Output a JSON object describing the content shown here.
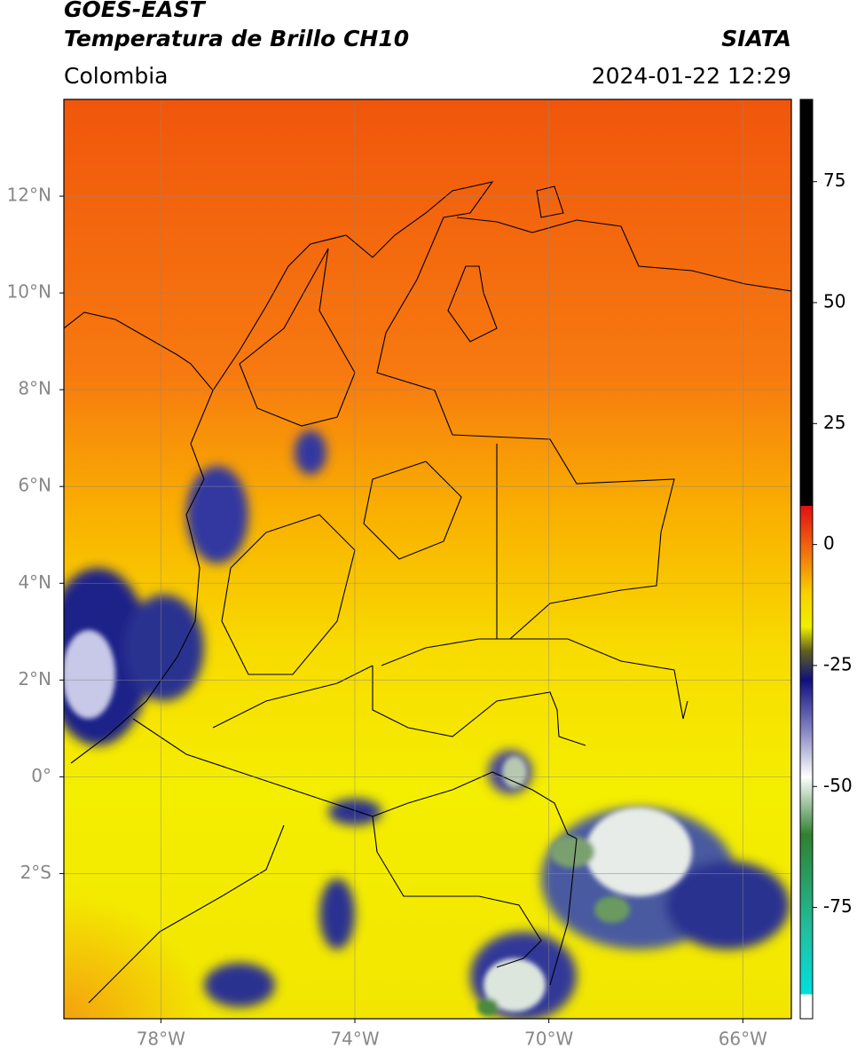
{
  "header": {
    "title": "GOES-EAST",
    "product": "Temperatura de Brillo CH10",
    "source": "SIATA",
    "region": "Colombia",
    "datetime": "2024-01-22 12:29"
  },
  "map": {
    "lonlim": [
      -80,
      -65
    ],
    "latlim": [
      -5,
      14
    ],
    "lonticks": [
      {
        "value": -78,
        "label": "78°W"
      },
      {
        "value": -74,
        "label": "74°W"
      },
      {
        "value": -70,
        "label": "70°W"
      },
      {
        "value": -66,
        "label": "66°W"
      }
    ],
    "latticks": [
      {
        "value": 12,
        "label": "12°N"
      },
      {
        "value": 10,
        "label": "10°N"
      },
      {
        "value": 8,
        "label": "8°N"
      },
      {
        "value": 6,
        "label": "6°N"
      },
      {
        "value": 4,
        "label": "4°N"
      },
      {
        "value": 2,
        "label": "2°N"
      },
      {
        "value": 0,
        "label": "0°"
      },
      {
        "value": -2,
        "label": "2°S"
      }
    ],
    "grid": true
  },
  "colorbar": {
    "lim": [
      -98,
      92
    ],
    "ticks": [
      75,
      50,
      25,
      0,
      -25,
      -50,
      -75
    ],
    "stops": [
      {
        "value": 92,
        "color": "#000000"
      },
      {
        "value": 8,
        "color": "#000000"
      },
      {
        "value": 8,
        "color": "#e01010"
      },
      {
        "value": 0,
        "color": "#f06010"
      },
      {
        "value": -10,
        "color": "#f8d000"
      },
      {
        "value": -17,
        "color": "#f0f000"
      },
      {
        "value": -22,
        "color": "#606020"
      },
      {
        "value": -28,
        "color": "#101080"
      },
      {
        "value": -38,
        "color": "#8080c0"
      },
      {
        "value": -48,
        "color": "#ffffff"
      },
      {
        "value": -60,
        "color": "#308030"
      },
      {
        "value": -80,
        "color": "#20c0a0"
      },
      {
        "value": -93,
        "color": "#00e0e0"
      },
      {
        "value": -93,
        "color": "#ffffff"
      },
      {
        "value": -98,
        "color": "#ffffff"
      }
    ]
  }
}
